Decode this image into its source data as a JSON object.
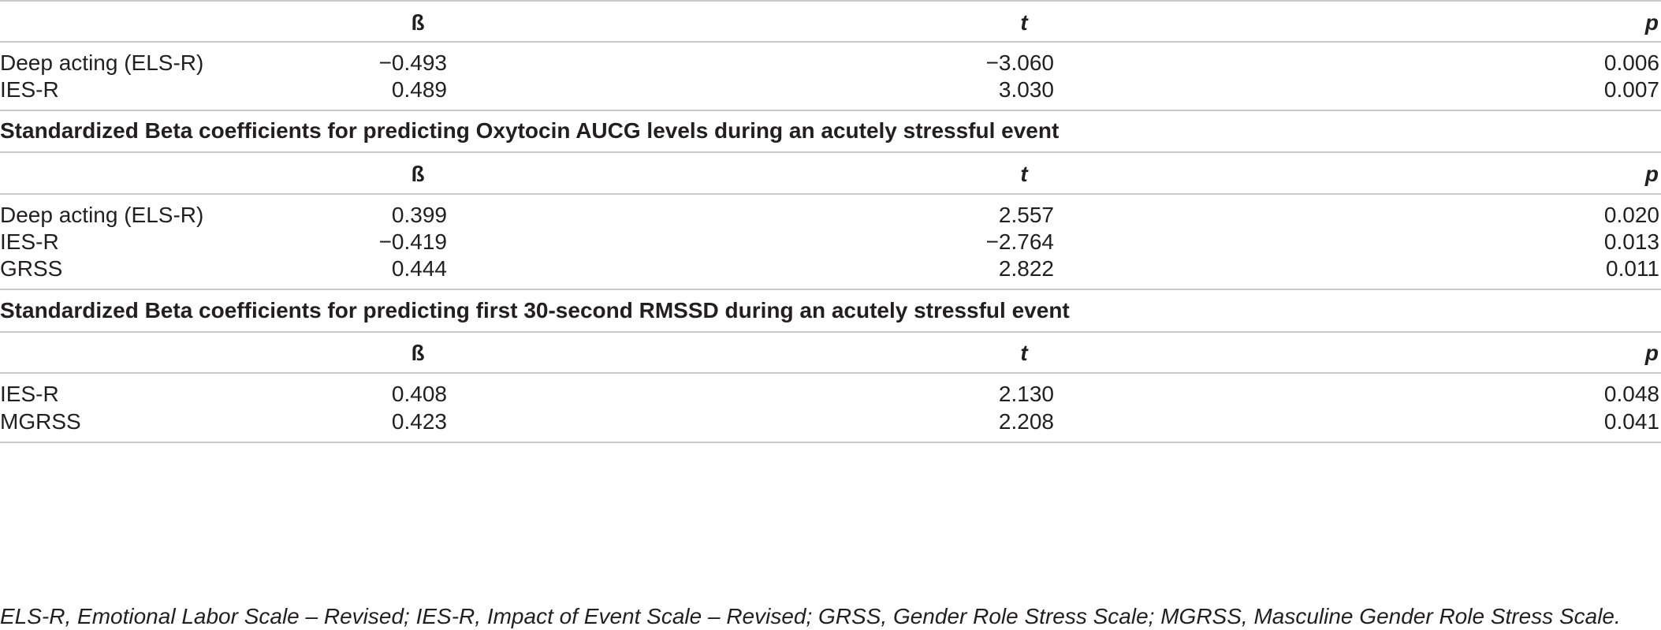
{
  "sections": [
    {
      "title": "",
      "columns": [
        "ß",
        "t",
        "p"
      ],
      "rows": [
        {
          "label": "Deep acting (ELS-R)",
          "beta": "−0.493",
          "t": "−3.060",
          "p": "0.006"
        },
        {
          "label": "IES-R",
          "beta": "0.489",
          "t": "3.030",
          "p": "0.007"
        }
      ]
    },
    {
      "title": "Standardized Beta coefficients for predicting Oxytocin AUCG levels during an acutely stressful event",
      "columns": [
        "ß",
        "t",
        "p"
      ],
      "rows": [
        {
          "label": "Deep acting (ELS-R)",
          "beta": "0.399",
          "t": "2.557",
          "p": "0.020"
        },
        {
          "label": "IES-R",
          "beta": "−0.419",
          "t": "−2.764",
          "p": "0.013"
        },
        {
          "label": "GRSS",
          "beta": "0.444",
          "t": "2.822",
          "p": "0.011"
        }
      ]
    },
    {
      "title": "Standardized Beta coefficients for predicting first 30-second RMSSD during an acutely stressful event",
      "columns": [
        "ß",
        "t",
        "p"
      ],
      "rows": [
        {
          "label": "IES-R",
          "beta": "0.408",
          "t": "2.130",
          "p": "0.048"
        },
        {
          "label": "MGRSS",
          "beta": "0.423",
          "t": "2.208",
          "p": "0.041"
        }
      ]
    }
  ],
  "footnote": "ELS-R, Emotional Labor Scale – Revised; IES-R, Impact of Event Scale – Revised; GRSS, Gender Role Stress Scale; MGRSS, Masculine Gender Role Stress Scale."
}
